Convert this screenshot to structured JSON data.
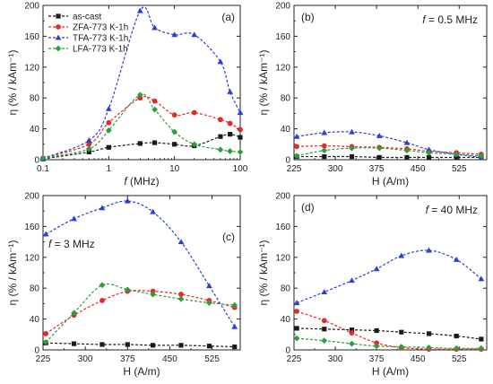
{
  "colors": {
    "as_cast": "#1a1a1a",
    "ZFA": "#e8272a",
    "TFA": "#2b3fd6",
    "LFA": "#2e9e3a"
  },
  "chart_data": [
    {
      "type": "line",
      "panel_label": "(a)",
      "annotation": "",
      "xscale": "log",
      "xlim": [
        0.1,
        100
      ],
      "ylim": [
        0,
        200
      ],
      "xticks": [
        0.1,
        1,
        10,
        100
      ],
      "xtick_labels": [
        "0.1",
        "1",
        "10",
        "100"
      ],
      "yticks": [
        0,
        40,
        80,
        120,
        160,
        200
      ],
      "xlabel_italic": "f",
      "xlabel_rest": " (MHz)",
      "ylabel": "η (% / kAm⁻¹)",
      "legend_position": "top-left",
      "series": [
        {
          "name": "as-cast",
          "key": "as_cast",
          "marker": "square",
          "x": [
            0.1,
            0.5,
            1,
            3,
            5,
            10,
            20,
            50,
            70,
            100
          ],
          "y": [
            1,
            10,
            16,
            21,
            22,
            20,
            18,
            30,
            33,
            29
          ]
        },
        {
          "name": "ZFA-773 K-1h",
          "key": "ZFA",
          "marker": "circle",
          "x": [
            0.1,
            0.5,
            1,
            3,
            5,
            10,
            20,
            50,
            70,
            100
          ],
          "y": [
            2,
            20,
            48,
            80,
            76,
            58,
            61,
            52,
            47,
            39
          ]
        },
        {
          "name": "TFA-773 K-1h",
          "key": "TFA",
          "marker": "triangle",
          "x": [
            0.1,
            0.5,
            1,
            3,
            5,
            10,
            20,
            50,
            70,
            100
          ],
          "y": [
            2,
            25,
            66,
            193,
            171,
            162,
            162,
            127,
            88,
            61
          ]
        },
        {
          "name": "LFA-773 K-1h",
          "key": "LFA",
          "marker": "diamond",
          "x": [
            0.1,
            0.5,
            1,
            3,
            5,
            10,
            20,
            50,
            70,
            100
          ],
          "y": [
            2,
            14,
            38,
            84,
            65,
            36,
            20,
            13,
            11,
            10
          ]
        }
      ]
    },
    {
      "type": "line",
      "panel_label": "(b)",
      "annotation_italic": "f",
      "annotation": " = 0.5 MHz",
      "xscale": "linear",
      "xlim": [
        225,
        575
      ],
      "ylim": [
        0,
        200
      ],
      "xticks": [
        225,
        300,
        375,
        450,
        525
      ],
      "xtick_labels": [
        "225",
        "300",
        "375",
        "450",
        "525"
      ],
      "yticks": [
        0,
        40,
        80,
        120,
        160,
        200
      ],
      "xlabel": "H (A/m)",
      "ylabel": "η (% / kAm⁻¹)",
      "series": [
        {
          "key": "as_cast",
          "marker": "square",
          "x": [
            230,
            280,
            330,
            380,
            430,
            470,
            520,
            565
          ],
          "y": [
            4,
            4,
            4,
            3,
            3,
            3,
            3,
            3
          ]
        },
        {
          "key": "ZFA",
          "marker": "circle",
          "x": [
            230,
            280,
            330,
            380,
            430,
            470,
            520,
            565
          ],
          "y": [
            17,
            18,
            17,
            16,
            14,
            11,
            9,
            7
          ]
        },
        {
          "key": "TFA",
          "marker": "triangle",
          "x": [
            230,
            280,
            330,
            380,
            430,
            470,
            520,
            565
          ],
          "y": [
            30,
            35,
            36,
            31,
            22,
            13,
            7,
            3
          ]
        },
        {
          "key": "LFA",
          "marker": "diamond",
          "x": [
            230,
            280,
            330,
            380,
            430,
            470,
            520,
            565
          ],
          "y": [
            5,
            12,
            15,
            15,
            12,
            9,
            7,
            5
          ]
        }
      ]
    },
    {
      "type": "line",
      "panel_label": "(c)",
      "annotation_italic": "f",
      "annotation": " = 3 MHz",
      "xscale": "linear",
      "xlim": [
        225,
        575
      ],
      "ylim": [
        0,
        200
      ],
      "xticks": [
        225,
        300,
        375,
        450,
        525
      ],
      "xtick_labels": [
        "225",
        "300",
        "375",
        "450",
        "525"
      ],
      "yticks": [
        0,
        40,
        80,
        120,
        160,
        200
      ],
      "xlabel": "H (A/m)",
      "ylabel": "η (% / kAm⁻¹)",
      "series": [
        {
          "key": "as_cast",
          "marker": "square",
          "x": [
            230,
            280,
            330,
            375,
            420,
            470,
            520,
            565
          ],
          "y": [
            9,
            8,
            7,
            7,
            6,
            6,
            5,
            4
          ]
        },
        {
          "key": "ZFA",
          "marker": "circle",
          "x": [
            230,
            280,
            330,
            375,
            420,
            470,
            520,
            565
          ],
          "y": [
            21,
            45,
            64,
            76,
            76,
            72,
            64,
            55
          ]
        },
        {
          "key": "TFA",
          "marker": "triangle",
          "x": [
            230,
            280,
            330,
            375,
            420,
            470,
            520,
            565
          ],
          "y": [
            150,
            170,
            184,
            193,
            179,
            140,
            83,
            30
          ]
        },
        {
          "key": "LFA",
          "marker": "diamond",
          "x": [
            230,
            280,
            330,
            375,
            420,
            470,
            520,
            565
          ],
          "y": [
            10,
            48,
            84,
            78,
            72,
            66,
            61,
            58
          ]
        }
      ]
    },
    {
      "type": "line",
      "panel_label": "(d)",
      "annotation_italic": "f",
      "annotation": " = 40 MHz",
      "xscale": "linear",
      "xlim": [
        225,
        575
      ],
      "ylim": [
        0,
        200
      ],
      "xticks": [
        225,
        300,
        375,
        450,
        525
      ],
      "xtick_labels": [
        "225",
        "300",
        "375",
        "450",
        "525"
      ],
      "yticks": [
        0,
        40,
        80,
        120,
        160,
        200
      ],
      "xlabel": "H (A/m)",
      "ylabel": "η (% / kAm⁻¹)",
      "series": [
        {
          "key": "as_cast",
          "marker": "square",
          "x": [
            230,
            280,
            330,
            375,
            420,
            470,
            520,
            565
          ],
          "y": [
            28,
            27,
            26,
            25,
            23,
            21,
            18,
            14
          ]
        },
        {
          "key": "ZFA",
          "marker": "circle",
          "x": [
            230,
            280,
            330,
            375,
            420,
            470,
            520,
            565
          ],
          "y": [
            50,
            38,
            22,
            9,
            3,
            1,
            1,
            1
          ]
        },
        {
          "key": "TFA",
          "marker": "triangle",
          "x": [
            230,
            280,
            330,
            375,
            420,
            470,
            520,
            565
          ],
          "y": [
            61,
            75,
            90,
            105,
            122,
            129,
            117,
            92
          ]
        },
        {
          "key": "LFA",
          "marker": "diamond",
          "x": [
            230,
            280,
            330,
            375,
            420,
            470,
            520,
            565
          ],
          "y": [
            15,
            12,
            8,
            5,
            4,
            3,
            2,
            2
          ]
        }
      ]
    }
  ]
}
